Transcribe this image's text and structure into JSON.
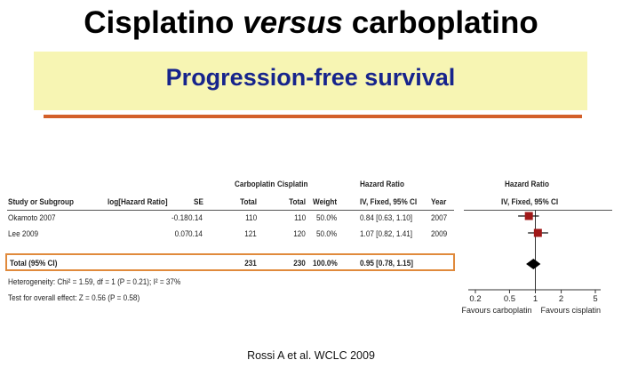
{
  "title": {
    "part1": "Cisplatino ",
    "part2": "versus",
    "part3": " carboplatino"
  },
  "banner": {
    "text": "Progression-free survival"
  },
  "citation": "Rossi A et al. WCLC 2009",
  "colors": {
    "banner_bg": "#f7f5b3",
    "banner_text": "#17248c",
    "rule": "#d3602a",
    "highlight_box": "#e08a3c",
    "marker": "#a01818"
  },
  "headers": {
    "carboplatin": "Carboplatin",
    "cisplatin": "Cisplatin",
    "hazard_ratio": "Hazard Ratio",
    "study": "Study or Subgroup",
    "log_hr": "log[Hazard Ratio]",
    "se": "SE",
    "total_1": "Total",
    "total_2": "Total",
    "weight": "Weight",
    "hr_method": "IV, Fixed, 95% CI",
    "year": "Year",
    "plot_title": "Hazard Ratio",
    "plot_method": "IV, Fixed, 95% CI"
  },
  "rows": [
    {
      "study": "Okamoto 2007",
      "log_hr": "-0.18",
      "se": "0.14",
      "carbo_total": "110",
      "cis_total": "110",
      "weight": "50.0%",
      "hr_ci": "0.84 [0.63, 1.10]",
      "year": "2007"
    },
    {
      "study": "Lee 2009",
      "log_hr": "0.07",
      "se": "0.14",
      "carbo_total": "121",
      "cis_total": "120",
      "weight": "50.0%",
      "hr_ci": "1.07 [0.82, 1.41]",
      "year": "2009"
    }
  ],
  "total": {
    "label": "Total (95% CI)",
    "carbo_total": "231",
    "cis_total": "230",
    "weight": "100.0%",
    "hr_ci": "0.95 [0.78, 1.15]"
  },
  "footer": {
    "heterogeneity": "Heterogeneity: Chi² = 1.59, df = 1 (P = 0.21); I² = 37%",
    "overall": "Test for overall effect: Z = 0.56 (P = 0.58)"
  },
  "chart_data": {
    "type": "forest",
    "scale": "log",
    "xlim": [
      0.2,
      5
    ],
    "xticks": [
      0.2,
      0.5,
      1,
      2,
      5
    ],
    "xtick_labels": [
      "0.2",
      "0.5",
      "1",
      "2",
      "5"
    ],
    "left_label": "Favours carboplatin",
    "right_label": "Favours cisplatin",
    "studies": [
      {
        "name": "Okamoto 2007",
        "hr": 0.84,
        "lower": 0.63,
        "upper": 1.1,
        "weight": 50.0
      },
      {
        "name": "Lee 2009",
        "hr": 1.07,
        "lower": 0.82,
        "upper": 1.41,
        "weight": 50.0
      }
    ],
    "pooled": {
      "hr": 0.95,
      "lower": 0.78,
      "upper": 1.15
    }
  }
}
